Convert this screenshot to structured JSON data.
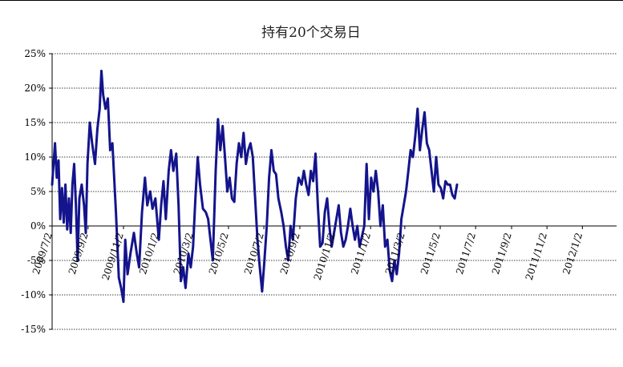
{
  "chart_data": {
    "type": "line",
    "title": "持有20个交易日",
    "xlabel": "",
    "ylabel": "",
    "ylim": [
      -15,
      25
    ],
    "yticks": [
      -15,
      -10,
      -5,
      0,
      5,
      10,
      15,
      20,
      25
    ],
    "ytick_labels": [
      "-15%",
      "-10%",
      "-5%",
      "0%",
      "5%",
      "10%",
      "15%",
      "20%",
      "25%"
    ],
    "grid": true,
    "legend": "none",
    "x_tick_labels": [
      "2009/7/2",
      "2009/9/2",
      "2009/11/2",
      "2010/1/2",
      "2010/3/2",
      "2010/5/2",
      "2010/7/2",
      "2010/9/2",
      "2010/11/2",
      "2011/1/2",
      "2011/3/2",
      "2011/5/2",
      "2011/7/2",
      "2011/9/2",
      "2011/11/2",
      "2012/1/2"
    ],
    "x_start": "2009/7/2",
    "x_end": "2012/3/1",
    "line_color": "#14148c",
    "series": [
      {
        "points": [
          [
            "2009/7/2",
            6
          ],
          [
            "2009/7/7",
            12
          ],
          [
            "2009/7/10",
            7
          ],
          [
            "2009/7/13",
            9.5
          ],
          [
            "2009/7/16",
            1
          ],
          [
            "2009/7/19",
            5.5
          ],
          [
            "2009/7/22",
            0.5
          ],
          [
            "2009/7/25",
            6
          ],
          [
            "2009/7/28",
            -0.5
          ],
          [
            "2009/7/31",
            4
          ],
          [
            "2009/8/3",
            -1
          ],
          [
            "2009/8/6",
            6
          ],
          [
            "2009/8/9",
            9
          ],
          [
            "2009/8/12",
            3
          ],
          [
            "2009/8/15",
            -5
          ],
          [
            "2009/8/18",
            4
          ],
          [
            "2009/8/22",
            6
          ],
          [
            "2009/8/26",
            3
          ],
          [
            "2009/8/29",
            -1
          ],
          [
            "2009/9/1",
            9
          ],
          [
            "2009/9/5",
            15
          ],
          [
            "2009/9/9",
            12
          ],
          [
            "2009/9/14",
            9
          ],
          [
            "2009/9/18",
            14
          ],
          [
            "2009/9/22",
            17
          ],
          [
            "2009/9/25",
            22.5
          ],
          [
            "2009/9/28",
            19
          ],
          [
            "2009/10/2",
            17
          ],
          [
            "2009/10/6",
            18.5
          ],
          [
            "2009/10/10",
            11
          ],
          [
            "2009/10/14",
            12
          ],
          [
            "2009/10/20",
            2
          ],
          [
            "2009/10/25",
            -7.5
          ],
          [
            "2009/10/29",
            -9
          ],
          [
            "2009/11/2",
            -11
          ],
          [
            "2009/11/5",
            -2
          ],
          [
            "2009/11/9",
            -7
          ],
          [
            "2009/11/14",
            -4
          ],
          [
            "2009/11/20",
            -1
          ],
          [
            "2009/11/25",
            -4
          ],
          [
            "2009/11/29",
            -6
          ],
          [
            "2009/12/4",
            2
          ],
          [
            "2009/12/9",
            7
          ],
          [
            "2009/12/13",
            3
          ],
          [
            "2009/12/18",
            5
          ],
          [
            "2009/12/22",
            2.5
          ],
          [
            "2009/12/27",
            4
          ],
          [
            "2010/1/2",
            -2
          ],
          [
            "2010/1/6",
            3
          ],
          [
            "2010/1/10",
            6.5
          ],
          [
            "2010/1/14",
            1
          ],
          [
            "2010/1/19",
            8
          ],
          [
            "2010/1/23",
            11
          ],
          [
            "2010/1/27",
            8
          ],
          [
            "2010/2/1",
            10.5
          ],
          [
            "2010/2/5",
            3
          ],
          [
            "2010/2/9",
            -8
          ],
          [
            "2010/2/13",
            -6
          ],
          [
            "2010/2/17",
            -9
          ],
          [
            "2010/2/22",
            -4
          ],
          [
            "2010/2/26",
            -6
          ],
          [
            "2010/3/2",
            -3
          ],
          [
            "2010/3/6",
            4
          ],
          [
            "2010/3/10",
            10
          ],
          [
            "2010/3/14",
            6
          ],
          [
            "2010/3/19",
            2.5
          ],
          [
            "2010/3/24",
            2
          ],
          [
            "2010/3/28",
            1
          ],
          [
            "2010/4/1",
            -2
          ],
          [
            "2010/4/5",
            -5
          ],
          [
            "2010/4/10",
            8
          ],
          [
            "2010/4/14",
            15.5
          ],
          [
            "2010/4/18",
            11
          ],
          [
            "2010/4/22",
            14.5
          ],
          [
            "2010/4/26",
            10
          ],
          [
            "2010/4/30",
            5
          ],
          [
            "2010/5/4",
            7
          ],
          [
            "2010/5/8",
            4
          ],
          [
            "2010/5/12",
            3.5
          ],
          [
            "2010/5/16",
            9
          ],
          [
            "2010/5/20",
            12
          ],
          [
            "2010/5/24",
            10
          ],
          [
            "2010/5/28",
            13.5
          ],
          [
            "2010/6/1",
            9
          ],
          [
            "2010/6/5",
            11
          ],
          [
            "2010/6/9",
            12
          ],
          [
            "2010/6/13",
            10
          ],
          [
            "2010/6/17",
            4
          ],
          [
            "2010/6/21",
            -2
          ],
          [
            "2010/6/25",
            -6
          ],
          [
            "2010/6/29",
            -9.5
          ],
          [
            "2010/7/3",
            -5
          ],
          [
            "2010/7/7",
            0
          ],
          [
            "2010/7/11",
            7
          ],
          [
            "2010/7/15",
            11
          ],
          [
            "2010/7/19",
            8
          ],
          [
            "2010/7/23",
            7.5
          ],
          [
            "2010/7/27",
            4
          ],
          [
            "2010/8/1",
            2
          ],
          [
            "2010/8/5",
            0
          ],
          [
            "2010/8/9",
            -3
          ],
          [
            "2010/8/13",
            -5
          ],
          [
            "2010/8/17",
            0
          ],
          [
            "2010/8/21",
            -2
          ],
          [
            "2010/8/26",
            4
          ],
          [
            "2010/8/31",
            7
          ],
          [
            "2010/9/5",
            6
          ],
          [
            "2010/9/9",
            8
          ],
          [
            "2010/9/13",
            6
          ],
          [
            "2010/9/17",
            4.5
          ],
          [
            "2010/9/21",
            8
          ],
          [
            "2010/9/25",
            6.5
          ],
          [
            "2010/9/29",
            10.5
          ],
          [
            "2010/10/3",
            3
          ],
          [
            "2010/10/7",
            -3
          ],
          [
            "2010/10/11",
            -2.5
          ],
          [
            "2010/10/15",
            2
          ],
          [
            "2010/10/19",
            4
          ],
          [
            "2010/10/23",
            0
          ],
          [
            "2010/10/27",
            -3
          ],
          [
            "2010/10/31",
            -1
          ],
          [
            "2010/11/4",
            1
          ],
          [
            "2010/11/8",
            3
          ],
          [
            "2010/11/12",
            -1
          ],
          [
            "2010/11/16",
            -3
          ],
          [
            "2010/11/20",
            -2
          ],
          [
            "2010/11/24",
            0
          ],
          [
            "2010/11/28",
            2.5
          ],
          [
            "2010/12/2",
            0
          ],
          [
            "2010/12/6",
            -2
          ],
          [
            "2010/12/10",
            0
          ],
          [
            "2010/12/14",
            -3
          ],
          [
            "2010/12/18",
            -1.5
          ],
          [
            "2010/12/22",
            0
          ],
          [
            "2010/12/26",
            9
          ],
          [
            "2010/12/30",
            1
          ],
          [
            "2011/1/3",
            7
          ],
          [
            "2011/1/7",
            5
          ],
          [
            "2011/1/11",
            8
          ],
          [
            "2011/1/15",
            5
          ],
          [
            "2011/1/19",
            0
          ],
          [
            "2011/1/23",
            3
          ],
          [
            "2011/1/27",
            -3
          ],
          [
            "2011/1/31",
            -2
          ],
          [
            "2011/2/4",
            -6.5
          ],
          [
            "2011/2/8",
            -8
          ],
          [
            "2011/2/12",
            -5
          ],
          [
            "2011/2/16",
            -7
          ],
          [
            "2011/2/20",
            -4
          ],
          [
            "2011/2/24",
            1
          ],
          [
            "2011/2/28",
            3
          ],
          [
            "2011/3/4",
            5
          ],
          [
            "2011/3/8",
            8
          ],
          [
            "2011/3/12",
            11
          ],
          [
            "2011/3/16",
            10
          ],
          [
            "2011/3/20",
            13
          ],
          [
            "2011/3/24",
            17
          ],
          [
            "2011/3/28",
            11
          ],
          [
            "2011/4/1",
            14
          ],
          [
            "2011/4/5",
            16.5
          ],
          [
            "2011/4/9",
            12
          ],
          [
            "2011/4/13",
            11
          ],
          [
            "2011/4/17",
            8
          ],
          [
            "2011/4/21",
            5
          ],
          [
            "2011/4/25",
            10
          ],
          [
            "2011/4/29",
            6
          ],
          [
            "2011/5/3",
            5.5
          ],
          [
            "2011/5/7",
            4
          ],
          [
            "2011/5/11",
            6.5
          ],
          [
            "2011/5/15",
            6
          ],
          [
            "2011/5/19",
            6
          ],
          [
            "2011/5/23",
            4.5
          ],
          [
            "2011/5/27",
            4
          ],
          [
            "2011/5/31",
            6
          ]
        ]
      }
    ]
  }
}
